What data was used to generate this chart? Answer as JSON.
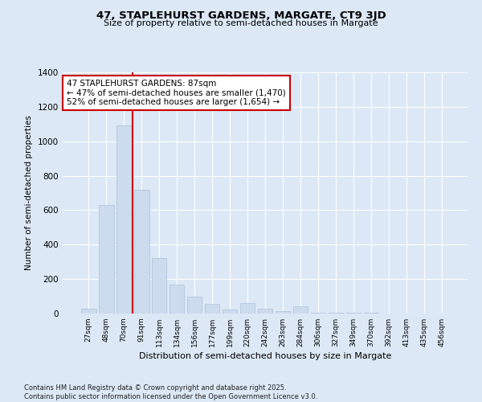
{
  "title1": "47, STAPLEHURST GARDENS, MARGATE, CT9 3JD",
  "title2": "Size of property relative to semi-detached houses in Margate",
  "xlabel": "Distribution of semi-detached houses by size in Margate",
  "ylabel": "Number of semi-detached properties",
  "categories": [
    "27sqm",
    "48sqm",
    "70sqm",
    "91sqm",
    "113sqm",
    "134sqm",
    "156sqm",
    "177sqm",
    "199sqm",
    "220sqm",
    "242sqm",
    "263sqm",
    "284sqm",
    "306sqm",
    "327sqm",
    "349sqm",
    "370sqm",
    "392sqm",
    "413sqm",
    "435sqm",
    "456sqm"
  ],
  "values": [
    27,
    630,
    1090,
    720,
    320,
    170,
    100,
    55,
    25,
    60,
    30,
    15,
    40,
    5,
    5,
    3,
    3,
    2,
    1,
    1,
    1
  ],
  "bar_color": "#ccdcee",
  "bar_edge_color": "#aac0da",
  "vline_x": 2.5,
  "vline_color": "#cc0000",
  "annotation_text": "47 STAPLEHURST GARDENS: 87sqm\n← 47% of semi-detached houses are smaller (1,470)\n52% of semi-detached houses are larger (1,654) →",
  "annotation_box_color": "#ffffff",
  "annotation_box_edge": "#cc0000",
  "ylim": [
    0,
    1400
  ],
  "yticks": [
    0,
    200,
    400,
    600,
    800,
    1000,
    1200,
    1400
  ],
  "footer": "Contains HM Land Registry data © Crown copyright and database right 2025.\nContains public sector information licensed under the Open Government Licence v3.0.",
  "bg_color": "#dce8f5",
  "plot_bg_color": "#dce8f5",
  "title_bg_color": "#dce8f5"
}
